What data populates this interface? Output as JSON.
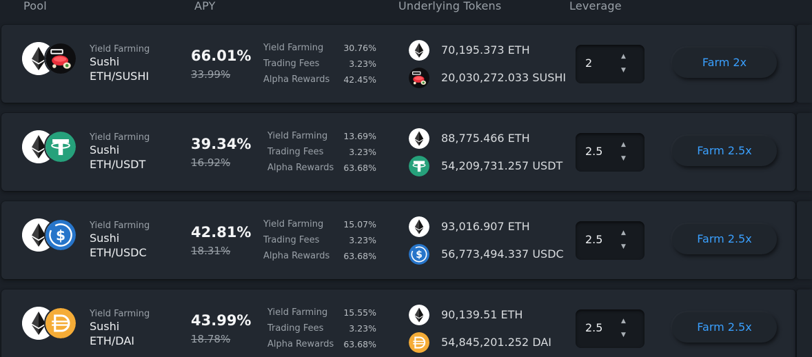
{
  "header": {
    "pool": "Pool",
    "apy": "APY",
    "underlying": "Underlying Tokens",
    "leverage": "Leverage"
  },
  "colors": {
    "accent": "#3aa0ff",
    "background": "#1b2027",
    "card": "#222830",
    "usdt": "#26a17b",
    "usdc": "#2775ca",
    "dai": "#f5ac37"
  },
  "rows": [
    {
      "type": "Yield Farming",
      "dex": "Sushi",
      "pair": "ETH/SUSHI",
      "apy": "66.01%",
      "apy_base": "33.99%",
      "breakdown": [
        {
          "label": "Yield Farming",
          "value": "30.76%"
        },
        {
          "label": "Trading Fees",
          "value": "3.23%"
        },
        {
          "label": "Alpha Rewards",
          "value": "42.45%"
        }
      ],
      "tokens": [
        {
          "icon": "eth-icon",
          "amount": "70,195.373 ETH"
        },
        {
          "icon": "sushi-icon",
          "amount": "20,030,272.033 SUSHI"
        }
      ],
      "leverage": "2",
      "button": "Farm 2x"
    },
    {
      "type": "Yield Farming",
      "dex": "Sushi",
      "pair": "ETH/USDT",
      "apy": "39.34%",
      "apy_base": "16.92%",
      "breakdown": [
        {
          "label": "Yield Farming",
          "value": "13.69%"
        },
        {
          "label": "Trading Fees",
          "value": "3.23%"
        },
        {
          "label": "Alpha Rewards",
          "value": "63.68%"
        }
      ],
      "tokens": [
        {
          "icon": "eth-icon",
          "amount": "88,775.466 ETH"
        },
        {
          "icon": "usdt-icon",
          "amount": "54,209,731.257 USDT"
        }
      ],
      "leverage": "2.5",
      "button": "Farm 2.5x"
    },
    {
      "type": "Yield Farming",
      "dex": "Sushi",
      "pair": "ETH/USDC",
      "apy": "42.81%",
      "apy_base": "18.31%",
      "breakdown": [
        {
          "label": "Yield Farming",
          "value": "15.07%"
        },
        {
          "label": "Trading Fees",
          "value": "3.23%"
        },
        {
          "label": "Alpha Rewards",
          "value": "63.68%"
        }
      ],
      "tokens": [
        {
          "icon": "eth-icon",
          "amount": "93,016.907 ETH"
        },
        {
          "icon": "usdc-icon",
          "amount": "56,773,494.337 USDC"
        }
      ],
      "leverage": "2.5",
      "button": "Farm 2.5x"
    },
    {
      "type": "Yield Farming",
      "dex": "Sushi",
      "pair": "ETH/DAI",
      "apy": "43.99%",
      "apy_base": "18.78%",
      "breakdown": [
        {
          "label": "Yield Farming",
          "value": "15.55%"
        },
        {
          "label": "Trading Fees",
          "value": "3.23%"
        },
        {
          "label": "Alpha Rewards",
          "value": "63.68%"
        }
      ],
      "tokens": [
        {
          "icon": "eth-icon",
          "amount": "90,139.51 ETH"
        },
        {
          "icon": "dai-icon",
          "amount": "54,845,201.252 DAI"
        }
      ],
      "leverage": "2.5",
      "button": "Farm 2.5x"
    }
  ]
}
